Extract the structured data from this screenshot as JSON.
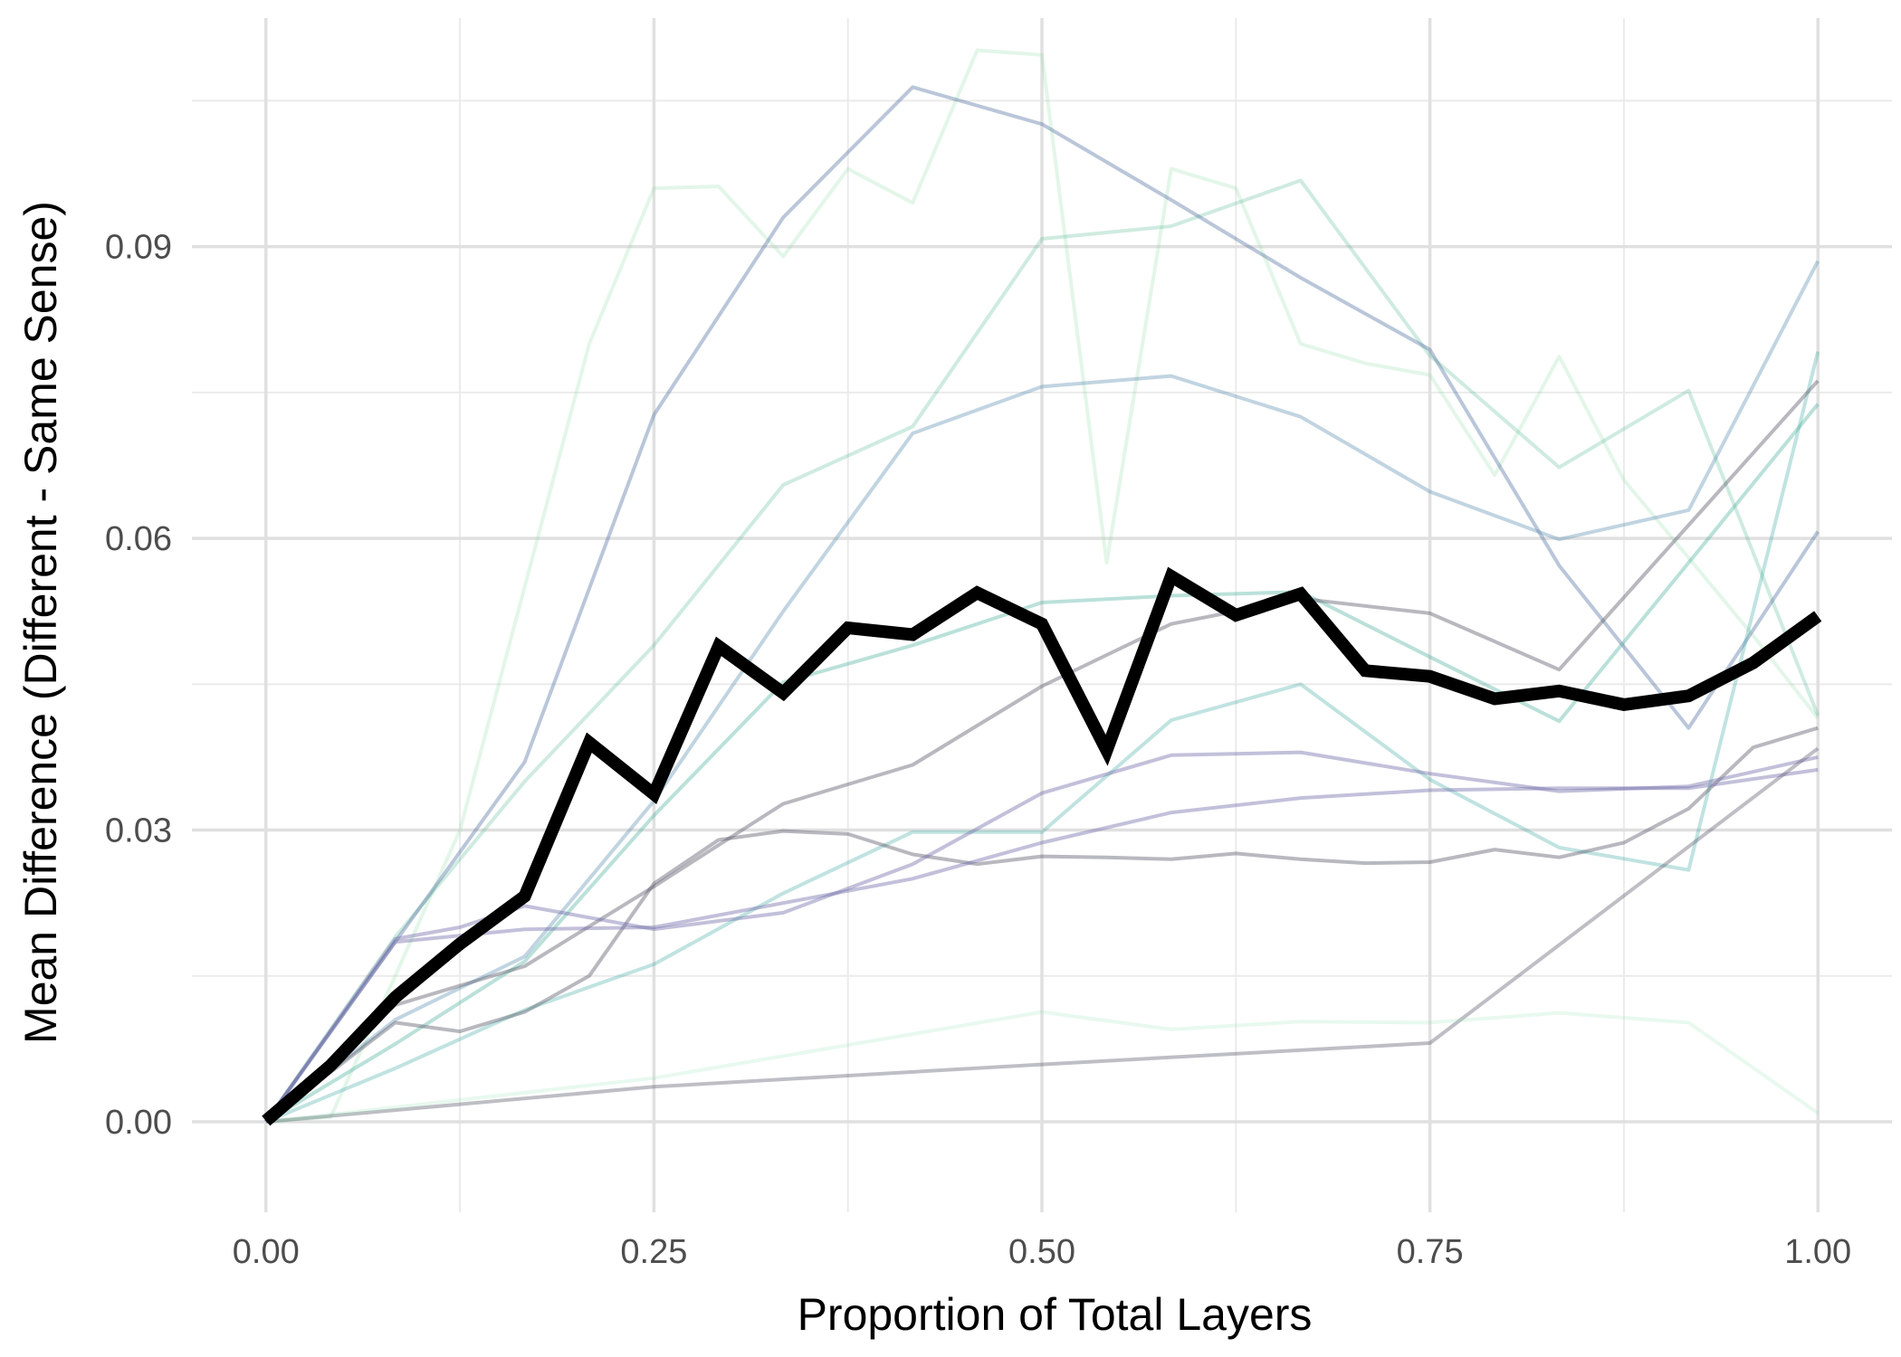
{
  "chart_data": {
    "type": "line",
    "title": "",
    "xlabel": "Proportion of Total Layers",
    "ylabel": "Mean Difference (Different - Same Sense)",
    "xlim": [
      -0.0477,
      1.0477
    ],
    "ylim": [
      -0.0093,
      0.1135
    ],
    "x_ticks": [
      0,
      0.25,
      0.5,
      0.75,
      1
    ],
    "x_tick_labels": [
      "0.00",
      "0.25",
      "0.50",
      "0.75",
      "1.00"
    ],
    "y_ticks": [
      0,
      0.03,
      0.06,
      0.09
    ],
    "y_tick_labels": [
      "0.00",
      "0.03",
      "0.06",
      "0.09"
    ],
    "grid": true,
    "legend": "none",
    "series": [
      {
        "color": "#7fd89a",
        "opacity": 0.22,
        "width": 4,
        "x": [
          0,
          0.0417,
          0.0833,
          0.125,
          0.1667,
          0.2083,
          0.25,
          0.2917,
          0.3333,
          0.375,
          0.4167,
          0.4583,
          0.5,
          0.5417,
          0.5833,
          0.625,
          0.6667,
          0.7083,
          0.75,
          0.7917,
          0.8333,
          0.875,
          0.9167,
          0.9583,
          1
        ],
        "y": [
          0,
          0.0005,
          0.015,
          0.03,
          0.055,
          0.08,
          0.096,
          0.0962,
          0.089,
          0.098,
          0.0945,
          0.1102,
          0.1097,
          0.0575,
          0.098,
          0.096,
          0.08,
          0.078,
          0.0768,
          0.0665,
          0.0787,
          0.066,
          0.058,
          0.05,
          0.0415
        ]
      },
      {
        "color": "#52b78f",
        "opacity": 0.28,
        "width": 4,
        "x": [
          0,
          0.0833,
          0.1667,
          0.25,
          0.3333,
          0.4167,
          0.5,
          0.5833,
          0.6667,
          0.75,
          0.8333,
          0.9167,
          1
        ],
        "y": [
          0,
          0.019,
          0.035,
          0.049,
          0.0655,
          0.0715,
          0.0908,
          0.0921,
          0.0968,
          0.0788,
          0.0673,
          0.0752,
          0.0418
        ]
      },
      {
        "color": "#4a6a9c",
        "opacity": 0.38,
        "width": 4,
        "x": [
          0,
          0.0833,
          0.1667,
          0.25,
          0.3333,
          0.4167,
          0.5,
          0.5833,
          0.6667,
          0.75,
          0.8333,
          0.9167,
          1
        ],
        "y": [
          0,
          0.0185,
          0.037,
          0.0727,
          0.093,
          0.1064,
          0.1026,
          0.0948,
          0.0868,
          0.0794,
          0.0572,
          0.0405,
          0.0607
        ]
      },
      {
        "color": "#5b8db0",
        "opacity": 0.38,
        "width": 4,
        "x": [
          0,
          0.0833,
          0.1667,
          0.25,
          0.3333,
          0.4167,
          0.5,
          0.5833,
          0.6667,
          0.75,
          0.8333,
          0.9167,
          1
        ],
        "y": [
          0,
          0.0105,
          0.017,
          0.033,
          0.0525,
          0.0708,
          0.0756,
          0.0767,
          0.0725,
          0.0648,
          0.0599,
          0.0629,
          0.0885
        ]
      },
      {
        "color": "#3aa891",
        "opacity": 0.35,
        "width": 4,
        "x": [
          0,
          0.0833,
          0.1667,
          0.25,
          0.3333,
          0.4167,
          0.5,
          0.5833,
          0.6667,
          0.75,
          0.8333,
          0.9167,
          1
        ],
        "y": [
          0,
          0.008,
          0.0165,
          0.0315,
          0.0452,
          0.049,
          0.0534,
          0.0541,
          0.0545,
          0.0478,
          0.0412,
          0.0575,
          0.0738
        ]
      },
      {
        "color": "#2fa39a",
        "opacity": 0.3,
        "width": 4,
        "x": [
          0,
          0.0833,
          0.1667,
          0.25,
          0.3333,
          0.4167,
          0.5,
          0.5833,
          0.6667,
          0.75,
          0.8333,
          0.9167,
          1
        ],
        "y": [
          0,
          0.0055,
          0.0115,
          0.0162,
          0.0235,
          0.0298,
          0.0298,
          0.0413,
          0.045,
          0.0352,
          0.0282,
          0.0259,
          0.0792
        ]
      },
      {
        "color": "#555566",
        "opacity": 0.42,
        "width": 4,
        "x": [
          0,
          0.0833,
          0.1667,
          0.25,
          0.3333,
          0.4167,
          0.5,
          0.5833,
          0.6667,
          0.75,
          0.8333,
          1
        ],
        "y": [
          0,
          0.012,
          0.016,
          0.0242,
          0.0327,
          0.0367,
          0.0448,
          0.0512,
          0.0538,
          0.0523,
          0.0465,
          0.0762
        ]
      },
      {
        "color": "#555566",
        "opacity": 0.42,
        "width": 4,
        "x": [
          0,
          0.0833,
          0.125,
          0.1667,
          0.2083,
          0.25,
          0.2917,
          0.3333,
          0.375,
          0.4167,
          0.4583,
          0.5,
          0.5417,
          0.5833,
          0.625,
          0.6667,
          0.7083,
          0.75,
          0.7917,
          0.8333,
          0.875,
          0.9167,
          0.9583,
          1
        ],
        "y": [
          0,
          0.0102,
          0.0093,
          0.0113,
          0.015,
          0.0245,
          0.029,
          0.0299,
          0.0296,
          0.0275,
          0.0265,
          0.0273,
          0.0272,
          0.027,
          0.0276,
          0.027,
          0.0266,
          0.0267,
          0.028,
          0.0272,
          0.0287,
          0.0322,
          0.0385,
          0.0405
        ]
      },
      {
        "color": "#6e6aa8",
        "opacity": 0.42,
        "width": 4,
        "x": [
          0,
          0.0833,
          0.125,
          0.1667,
          0.25,
          0.3333,
          0.4167,
          0.5,
          0.5833,
          0.6667,
          0.75,
          0.8333,
          0.9167,
          1
        ],
        "y": [
          0,
          0.0188,
          0.02,
          0.0222,
          0.0198,
          0.0215,
          0.0265,
          0.0338,
          0.0377,
          0.038,
          0.0358,
          0.034,
          0.0345,
          0.0375
        ]
      },
      {
        "color": "#6e6aa8",
        "opacity": 0.42,
        "width": 4,
        "x": [
          0,
          0.0833,
          0.1667,
          0.25,
          0.3333,
          0.4167,
          0.5,
          0.5833,
          0.6667,
          0.75,
          0.8333,
          0.9167,
          1
        ],
        "y": [
          0,
          0.0185,
          0.0198,
          0.02,
          0.0225,
          0.025,
          0.0287,
          0.0318,
          0.0333,
          0.0341,
          0.0343,
          0.0343,
          0.0362
        ]
      },
      {
        "color": "#555566",
        "opacity": 0.38,
        "width": 4,
        "x": [
          0,
          0.25,
          0.5,
          0.75,
          1
        ],
        "y": [
          0,
          0.0036,
          0.0059,
          0.0081,
          0.0384
        ]
      },
      {
        "color": "#8ee0b0",
        "opacity": 0.2,
        "width": 4,
        "x": [
          0,
          0.25,
          0.5,
          0.5833,
          0.6667,
          0.75,
          0.8333,
          0.9167,
          1
        ],
        "y": [
          0,
          0.0045,
          0.0113,
          0.0095,
          0.0103,
          0.0102,
          0.0112,
          0.0102,
          0.0009
        ]
      },
      {
        "color": "#000000",
        "opacity": 1,
        "width": 14,
        "x": [
          0,
          0.0417,
          0.0833,
          0.125,
          0.1667,
          0.2083,
          0.25,
          0.2917,
          0.3333,
          0.375,
          0.4167,
          0.4583,
          0.5,
          0.5417,
          0.5833,
          0.625,
          0.6667,
          0.7083,
          0.75,
          0.7917,
          0.8333,
          0.875,
          0.9167,
          0.9583,
          1
        ],
        "y": [
          0.0001,
          0.0058,
          0.0128,
          0.0183,
          0.0232,
          0.039,
          0.0337,
          0.0489,
          0.0441,
          0.0508,
          0.0501,
          0.0544,
          0.0512,
          0.0382,
          0.0561,
          0.0521,
          0.0543,
          0.0464,
          0.0458,
          0.0435,
          0.0443,
          0.0429,
          0.0438,
          0.0472,
          0.052
        ]
      }
    ]
  }
}
